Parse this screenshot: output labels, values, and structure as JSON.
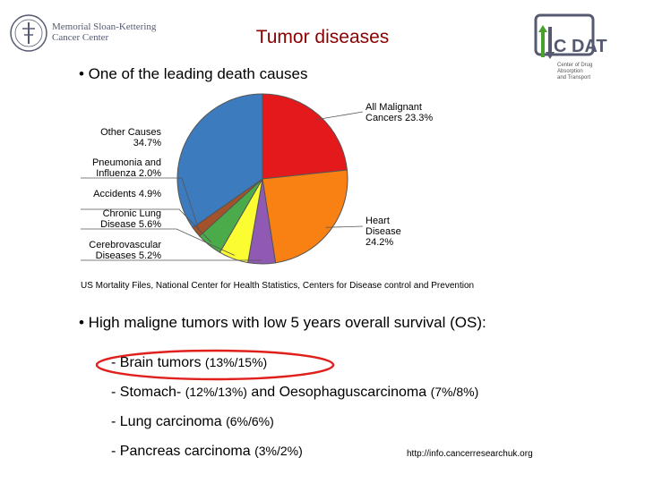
{
  "title": "Tumor diseases",
  "logos": {
    "left_lines": [
      "Memorial Sloan-Kettering",
      "Cancer Center"
    ],
    "right_main": "C DAT",
    "right_sub": [
      "Center of Drug Absorption",
      "and Transport"
    ]
  },
  "bullets": {
    "first": "• One of the leading death causes",
    "second": "• High maligne tumors with low 5 years overall survival (OS):"
  },
  "source": "US Mortality Files, National Center for Health Statistics, Centers for Disease control and Prevention",
  "tumors": [
    {
      "name": "- Brain tumors",
      "os": "(13%/15%)"
    },
    {
      "name": "- Stomach-",
      "os": "(12%/13%)",
      "name2": "and Oesophaguscarcinoma",
      "os2": "(7%/8%)"
    },
    {
      "name": "- Lung carcinoma",
      "os": "(6%/6%)"
    },
    {
      "name": "- Pancreas carcinoma",
      "os": "(3%/2%)"
    }
  ],
  "url": "http://info.cancerresearchuk.org",
  "highlight_color": "#e0201c",
  "chart_data": {
    "type": "pie",
    "slices": [
      {
        "label": "All Malignant",
        "label2": "Cancers 23.3%",
        "value": 23.3,
        "color": "#e3191b"
      },
      {
        "label": "Heart",
        "label2": "Disease",
        "label3": "24.2%",
        "value": 24.2,
        "color": "#f98113"
      },
      {
        "label": "Cerebrovascular",
        "label2": "Diseases 5.2%",
        "value": 5.2,
        "color": "#8f59b4"
      },
      {
        "label": "Chronic Lung",
        "label2": "Disease 5.6%",
        "value": 5.6,
        "color": "#fbfc32"
      },
      {
        "label": "Accidents 4.9%",
        "value": 4.9,
        "color": "#4bab4b"
      },
      {
        "label": "Pneumonia and",
        "label2": "Influenza 2.0%",
        "value": 2.0,
        "color": "#a35229"
      },
      {
        "label": "Other Causes",
        "label2": "34.7%",
        "value": 34.7,
        "color": "#3c7bbe"
      }
    ]
  }
}
